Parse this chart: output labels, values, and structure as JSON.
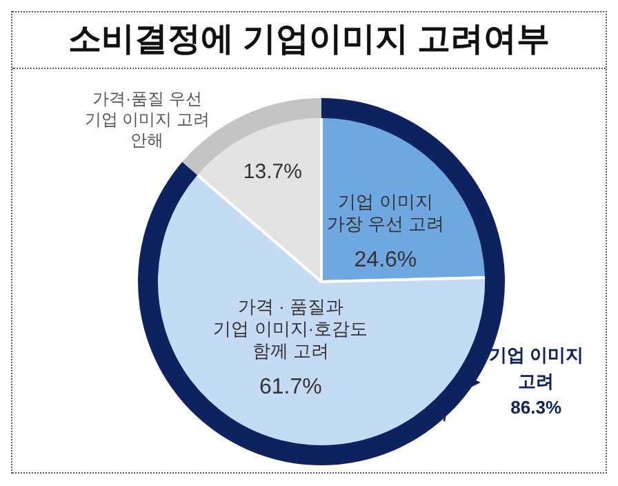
{
  "chart_data": [
    {
      "type": "pie",
      "title": "소비결정에 기업이미지 고려여부",
      "categories": [
        "기업 이미지\n가장 우선 고려",
        "가격 · 품질과\n기업 이미지·호감도\n함께 고려",
        "가격·품질 우선\n기업 이미지 고려\n안해"
      ],
      "values": [
        24.6,
        61.7,
        13.7
      ],
      "colors": [
        "#6fa8e0",
        "#c5dbf3",
        "#e3e3e3"
      ],
      "value_labels": [
        "24.6%",
        "61.7%",
        "13.7%"
      ]
    },
    {
      "type": "donut",
      "categories": [
        "기업 이미지\n고려",
        null
      ],
      "values": [
        86.3,
        13.7
      ],
      "colors": [
        "#0f2260",
        "#c4c4c4"
      ],
      "value_labels": [
        "86.3%",
        null
      ]
    }
  ]
}
